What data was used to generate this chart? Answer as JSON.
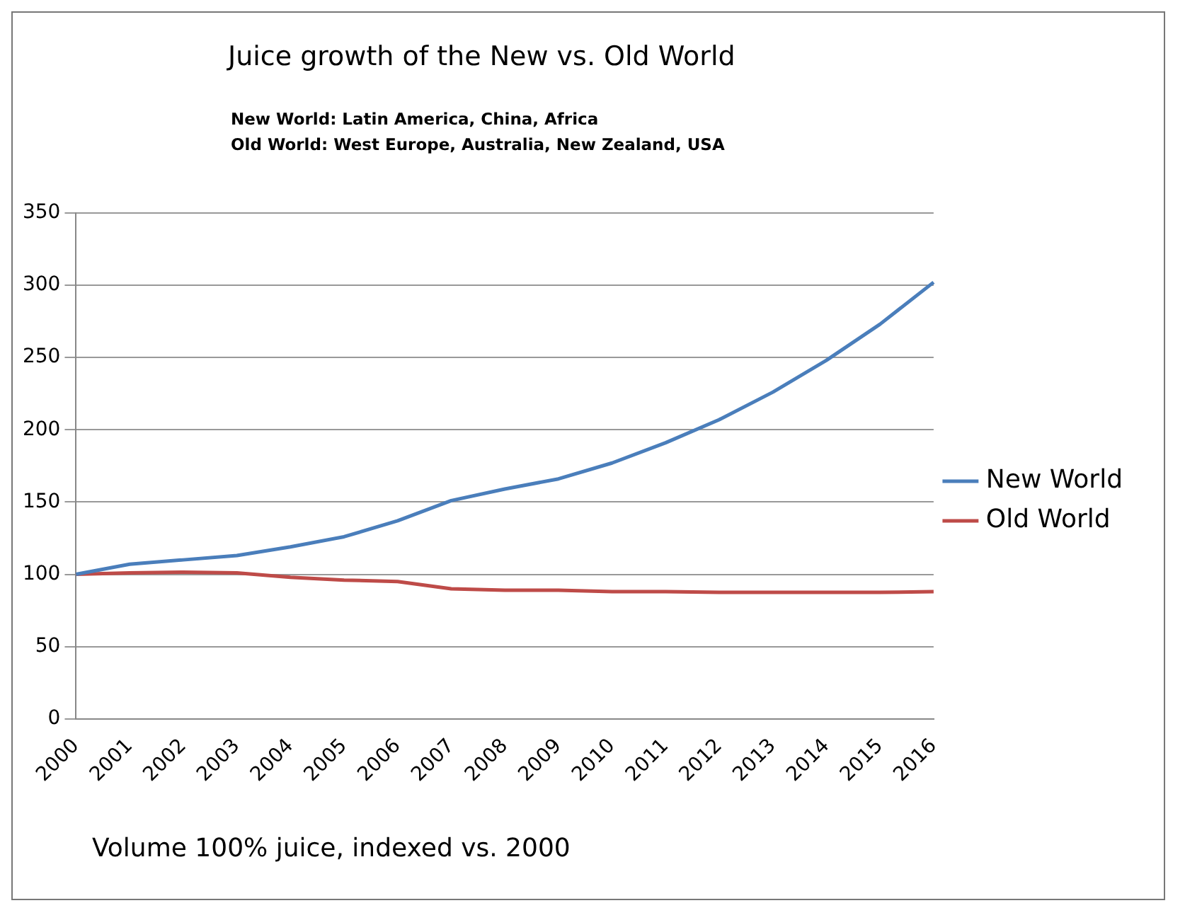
{
  "chart_data": {
    "type": "line",
    "title": "Juice growth of the New vs. Old World",
    "subtitle": "New World: Latin America, China, Africa\nOld World: West Europe, Australia, New Zealand, USA",
    "categories": [
      "2000",
      "2001",
      "2002",
      "2003",
      "2004",
      "2005",
      "2006",
      "2007",
      "2008",
      "2009",
      "2010",
      "2011",
      "2012",
      "2013",
      "2014",
      "2015",
      "2016"
    ],
    "series": [
      {
        "name": "New World",
        "color": "#4a7ebb",
        "values": [
          100,
          107,
          110,
          113,
          119,
          126,
          137,
          151,
          159,
          166,
          177,
          191,
          207,
          226,
          248,
          273,
          302
        ]
      },
      {
        "name": "Old World",
        "color": "#be4b48",
        "values": [
          100,
          101,
          101.5,
          101,
          98,
          96,
          95,
          90,
          89,
          89,
          88,
          88,
          87.5,
          87.5,
          87.5,
          87.5,
          88
        ]
      }
    ],
    "ylim": [
      0,
      350
    ],
    "yticks": [
      0,
      50,
      100,
      150,
      200,
      250,
      300,
      350
    ],
    "grid": "y",
    "legend": "right",
    "marker": "none",
    "line_style": "solid",
    "annotations": [
      "Volume 100% juice, indexed vs. 2000"
    ]
  }
}
